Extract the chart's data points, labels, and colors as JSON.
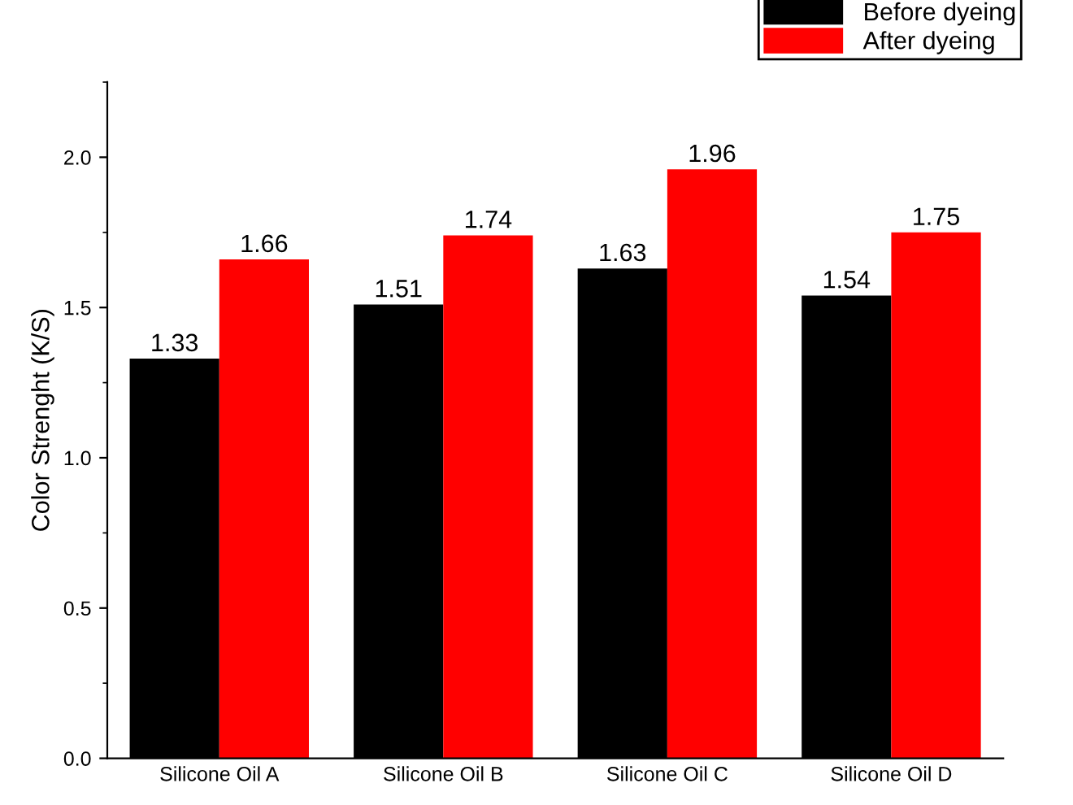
{
  "chart_data": {
    "type": "bar",
    "ylabel": "Color Strenght (K/S)",
    "categories": [
      "Silicone Oil A",
      "Silicone Oil B",
      "Silicone Oil C",
      "Silicone Oil D"
    ],
    "series": [
      {
        "name": "Before dyeing",
        "color": "#000000",
        "values": [
          1.33,
          1.51,
          1.63,
          1.54
        ]
      },
      {
        "name": "After dyeing",
        "color": "#ff0000",
        "values": [
          1.66,
          1.74,
          1.96,
          1.75
        ]
      }
    ],
    "ylim": [
      0,
      2.25
    ],
    "yticks": [
      {
        "value": 0,
        "label": "0.0"
      },
      {
        "value": 0.5,
        "label": "0.5"
      },
      {
        "value": 1.0,
        "label": "1.0"
      },
      {
        "value": 1.5,
        "label": "1.5"
      },
      {
        "value": 2.0,
        "label": "2.0"
      }
    ],
    "data_labels": true,
    "legend": "top right",
    "grid": false
  }
}
